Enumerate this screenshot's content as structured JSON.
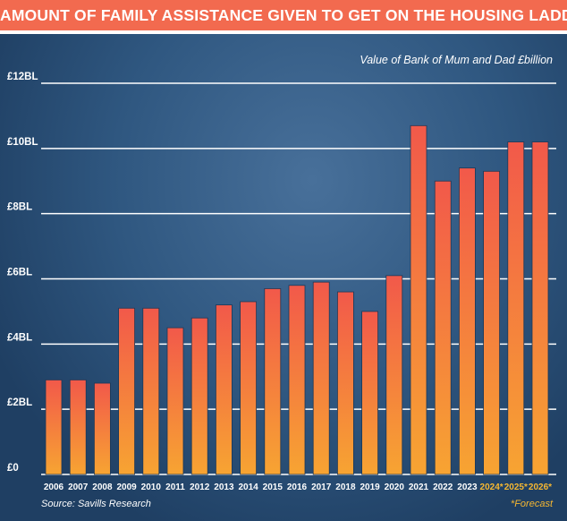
{
  "title": "AMOUNT OF FAMILY ASSISTANCE GIVEN TO GET ON THE HOUSING LADDER",
  "source": "Source: Savills Research",
  "forecast_note": "*Forecast",
  "colors": {
    "header": "#f26a4f",
    "bar_top": "#f2594a",
    "bar_bottom": "#f7a432",
    "forecast_label": "#f5b731",
    "axis_text": "#ffffff",
    "gridline": "#ffffff"
  },
  "chart_data": {
    "type": "bar",
    "title": "Value of Bank of Mum and Dad £billion",
    "xlabel": "",
    "ylabel": "",
    "ylim": [
      0,
      12
    ],
    "yticks": [
      0,
      2,
      4,
      6,
      8,
      10,
      12
    ],
    "ytick_labels": [
      "£0",
      "£2BL",
      "£4BL",
      "£6BL",
      "£8BL",
      "£10BL",
      "£12BL"
    ],
    "grid": true,
    "categories": [
      "2006",
      "2007",
      "2008",
      "2009",
      "2010",
      "2011",
      "2012",
      "2013",
      "2014",
      "2015",
      "2016",
      "2017",
      "2018",
      "2019",
      "2020",
      "2021",
      "2022",
      "2023",
      "2024*",
      "2025*",
      "2026*"
    ],
    "forecast": [
      false,
      false,
      false,
      false,
      false,
      false,
      false,
      false,
      false,
      false,
      false,
      false,
      false,
      false,
      false,
      false,
      false,
      false,
      true,
      true,
      true
    ],
    "values": [
      2.9,
      2.9,
      2.8,
      5.1,
      5.1,
      4.5,
      4.8,
      5.2,
      5.3,
      5.7,
      5.8,
      5.9,
      5.6,
      5.0,
      6.1,
      10.7,
      9.0,
      9.4,
      9.3,
      10.2,
      10.2
    ]
  }
}
